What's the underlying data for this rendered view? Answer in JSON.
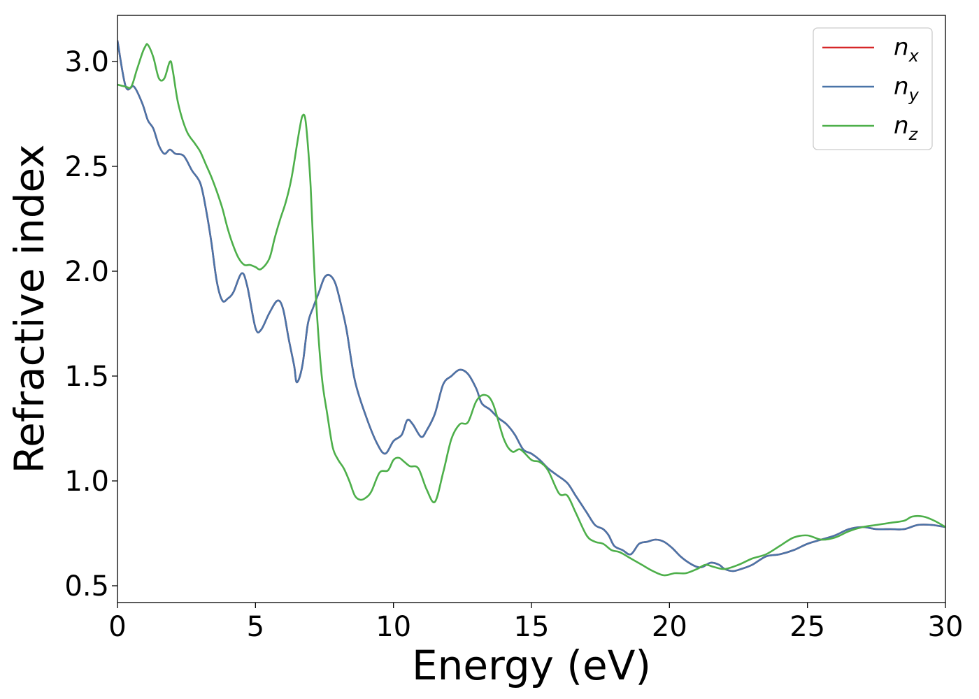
{
  "chart_data": {
    "type": "line",
    "title": "",
    "xlabel": "Energy (eV)",
    "ylabel": "Refractive index",
    "xlim": [
      0,
      30
    ],
    "ylim": [
      0.42,
      3.22
    ],
    "xticks": [
      0,
      5,
      10,
      15,
      20,
      25,
      30
    ],
    "xtick_labels": [
      "0",
      "5",
      "10",
      "15",
      "20",
      "25",
      "30"
    ],
    "yticks": [
      0.5,
      1.0,
      1.5,
      2.0,
      2.5,
      3.0
    ],
    "ytick_labels": [
      "0.5",
      "1.0",
      "1.5",
      "2.0",
      "2.5",
      "3.0"
    ],
    "grid": false,
    "legend_position": "top-right",
    "series": [
      {
        "name": "n",
        "subscript": "x",
        "color": "#d62728",
        "x": [
          0,
          0.3,
          0.6,
          0.9,
          1.1,
          1.3,
          1.5,
          1.7,
          1.9,
          2.1,
          2.4,
          2.7,
          3.0,
          3.2,
          3.4,
          3.6,
          3.8,
          4.0,
          4.2,
          4.5,
          4.7,
          5.0,
          5.2,
          5.5,
          5.8,
          6.0,
          6.2,
          6.4,
          6.5,
          6.7,
          6.9,
          7.1,
          7.3,
          7.5,
          7.7,
          7.9,
          8.1,
          8.3,
          8.6,
          9.0,
          9.4,
          9.7,
          10.0,
          10.3,
          10.5,
          10.7,
          11.0,
          11.2,
          11.5,
          11.8,
          12.1,
          12.4,
          12.7,
          13.0,
          13.2,
          13.5,
          13.8,
          14.1,
          14.4,
          14.7,
          15.0,
          15.3,
          15.6,
          15.9,
          16.3,
          16.6,
          17.0,
          17.3,
          17.6,
          17.8,
          18.0,
          18.3,
          18.6,
          18.9,
          19.2,
          19.5,
          19.8,
          20.1,
          20.4,
          20.7,
          21.0,
          21.2,
          21.5,
          21.8,
          22.0,
          22.3,
          22.6,
          23.0,
          23.5,
          24.0,
          24.5,
          25.0,
          25.5,
          26.0,
          26.5,
          27.0,
          27.5,
          28.0,
          28.5,
          29.0,
          29.5,
          30.0
        ],
        "values": [
          3.1,
          2.88,
          2.88,
          2.8,
          2.72,
          2.68,
          2.6,
          2.56,
          2.58,
          2.56,
          2.55,
          2.48,
          2.42,
          2.3,
          2.14,
          1.95,
          1.86,
          1.87,
          1.9,
          1.99,
          1.93,
          1.73,
          1.72,
          1.8,
          1.86,
          1.82,
          1.68,
          1.55,
          1.47,
          1.55,
          1.75,
          1.83,
          1.9,
          1.97,
          1.98,
          1.94,
          1.84,
          1.72,
          1.48,
          1.31,
          1.18,
          1.13,
          1.19,
          1.22,
          1.29,
          1.27,
          1.21,
          1.24,
          1.32,
          1.46,
          1.5,
          1.53,
          1.51,
          1.44,
          1.37,
          1.34,
          1.3,
          1.27,
          1.22,
          1.15,
          1.13,
          1.1,
          1.06,
          1.03,
          0.99,
          0.93,
          0.85,
          0.79,
          0.77,
          0.74,
          0.69,
          0.67,
          0.65,
          0.7,
          0.71,
          0.72,
          0.71,
          0.68,
          0.64,
          0.61,
          0.59,
          0.59,
          0.61,
          0.6,
          0.58,
          0.57,
          0.58,
          0.6,
          0.64,
          0.65,
          0.67,
          0.7,
          0.72,
          0.74,
          0.77,
          0.78,
          0.77,
          0.77,
          0.77,
          0.79,
          0.79,
          0.78
        ]
      },
      {
        "name": "n",
        "subscript": "y",
        "color": "#4a74a8",
        "x": [
          0,
          0.3,
          0.6,
          0.9,
          1.1,
          1.3,
          1.5,
          1.7,
          1.9,
          2.1,
          2.4,
          2.7,
          3.0,
          3.2,
          3.4,
          3.6,
          3.8,
          4.0,
          4.2,
          4.5,
          4.7,
          5.0,
          5.2,
          5.5,
          5.8,
          6.0,
          6.2,
          6.4,
          6.5,
          6.7,
          6.9,
          7.1,
          7.3,
          7.5,
          7.7,
          7.9,
          8.1,
          8.3,
          8.6,
          9.0,
          9.4,
          9.7,
          10.0,
          10.3,
          10.5,
          10.7,
          11.0,
          11.2,
          11.5,
          11.8,
          12.1,
          12.4,
          12.7,
          13.0,
          13.2,
          13.5,
          13.8,
          14.1,
          14.4,
          14.7,
          15.0,
          15.3,
          15.6,
          15.9,
          16.3,
          16.6,
          17.0,
          17.3,
          17.6,
          17.8,
          18.0,
          18.3,
          18.6,
          18.9,
          19.2,
          19.5,
          19.8,
          20.1,
          20.4,
          20.7,
          21.0,
          21.2,
          21.5,
          21.8,
          22.0,
          22.3,
          22.6,
          23.0,
          23.5,
          24.0,
          24.5,
          25.0,
          25.5,
          26.0,
          26.5,
          27.0,
          27.5,
          28.0,
          28.5,
          29.0,
          29.5,
          30.0
        ],
        "values": [
          3.1,
          2.88,
          2.88,
          2.8,
          2.72,
          2.68,
          2.6,
          2.56,
          2.58,
          2.56,
          2.55,
          2.48,
          2.42,
          2.3,
          2.14,
          1.95,
          1.86,
          1.87,
          1.9,
          1.99,
          1.93,
          1.73,
          1.72,
          1.8,
          1.86,
          1.82,
          1.68,
          1.55,
          1.47,
          1.55,
          1.75,
          1.83,
          1.9,
          1.97,
          1.98,
          1.94,
          1.84,
          1.72,
          1.48,
          1.31,
          1.18,
          1.13,
          1.19,
          1.22,
          1.29,
          1.27,
          1.21,
          1.24,
          1.32,
          1.46,
          1.5,
          1.53,
          1.51,
          1.44,
          1.37,
          1.34,
          1.3,
          1.27,
          1.22,
          1.15,
          1.13,
          1.1,
          1.06,
          1.03,
          0.99,
          0.93,
          0.85,
          0.79,
          0.77,
          0.74,
          0.69,
          0.67,
          0.65,
          0.7,
          0.71,
          0.72,
          0.71,
          0.68,
          0.64,
          0.61,
          0.59,
          0.59,
          0.61,
          0.6,
          0.58,
          0.57,
          0.58,
          0.6,
          0.64,
          0.65,
          0.67,
          0.7,
          0.72,
          0.74,
          0.77,
          0.78,
          0.77,
          0.77,
          0.77,
          0.79,
          0.79,
          0.78
        ]
      },
      {
        "name": "n",
        "subscript": "z",
        "color": "#4daf4a",
        "x": [
          0,
          0.3,
          0.5,
          0.7,
          0.9,
          1.0,
          1.1,
          1.3,
          1.5,
          1.7,
          1.9,
          2.0,
          2.2,
          2.5,
          2.8,
          3.0,
          3.2,
          3.4,
          3.6,
          3.8,
          4.0,
          4.2,
          4.4,
          4.6,
          4.8,
          5.0,
          5.2,
          5.5,
          5.7,
          5.9,
          6.1,
          6.3,
          6.5,
          6.6,
          6.7,
          6.8,
          6.9,
          7.0,
          7.1,
          7.2,
          7.4,
          7.6,
          7.8,
          8.0,
          8.2,
          8.4,
          8.6,
          8.8,
          9.0,
          9.2,
          9.5,
          9.8,
          10.0,
          10.2,
          10.4,
          10.6,
          10.9,
          11.2,
          11.5,
          11.8,
          12.1,
          12.4,
          12.7,
          13.0,
          13.3,
          13.6,
          14.0,
          14.3,
          14.6,
          15.0,
          15.3,
          15.6,
          16.0,
          16.3,
          16.6,
          17.0,
          17.3,
          17.6,
          17.9,
          18.2,
          18.6,
          19.0,
          19.4,
          19.8,
          20.2,
          20.6,
          21.0,
          21.3,
          21.6,
          22.0,
          22.5,
          23.0,
          23.5,
          24.0,
          24.5,
          25.0,
          25.5,
          26.0,
          26.5,
          27.0,
          27.5,
          28.0,
          28.5,
          28.8,
          29.2,
          29.6,
          30.0
        ],
        "values": [
          2.89,
          2.88,
          2.88,
          2.96,
          3.04,
          3.07,
          3.08,
          3.02,
          2.92,
          2.92,
          3.0,
          2.96,
          2.8,
          2.67,
          2.61,
          2.57,
          2.51,
          2.45,
          2.38,
          2.3,
          2.2,
          2.12,
          2.06,
          2.03,
          2.03,
          2.02,
          2.01,
          2.06,
          2.16,
          2.25,
          2.33,
          2.44,
          2.6,
          2.68,
          2.74,
          2.73,
          2.6,
          2.4,
          2.1,
          1.85,
          1.5,
          1.32,
          1.16,
          1.1,
          1.06,
          1.0,
          0.93,
          0.91,
          0.92,
          0.95,
          1.04,
          1.05,
          1.1,
          1.11,
          1.09,
          1.07,
          1.06,
          0.96,
          0.9,
          1.04,
          1.2,
          1.27,
          1.28,
          1.38,
          1.41,
          1.37,
          1.2,
          1.14,
          1.15,
          1.1,
          1.09,
          1.05,
          0.94,
          0.93,
          0.85,
          0.74,
          0.71,
          0.7,
          0.67,
          0.66,
          0.63,
          0.6,
          0.57,
          0.55,
          0.56,
          0.56,
          0.58,
          0.6,
          0.59,
          0.58,
          0.6,
          0.63,
          0.65,
          0.69,
          0.73,
          0.74,
          0.72,
          0.73,
          0.76,
          0.78,
          0.79,
          0.8,
          0.81,
          0.83,
          0.83,
          0.81,
          0.78
        ]
      }
    ]
  }
}
